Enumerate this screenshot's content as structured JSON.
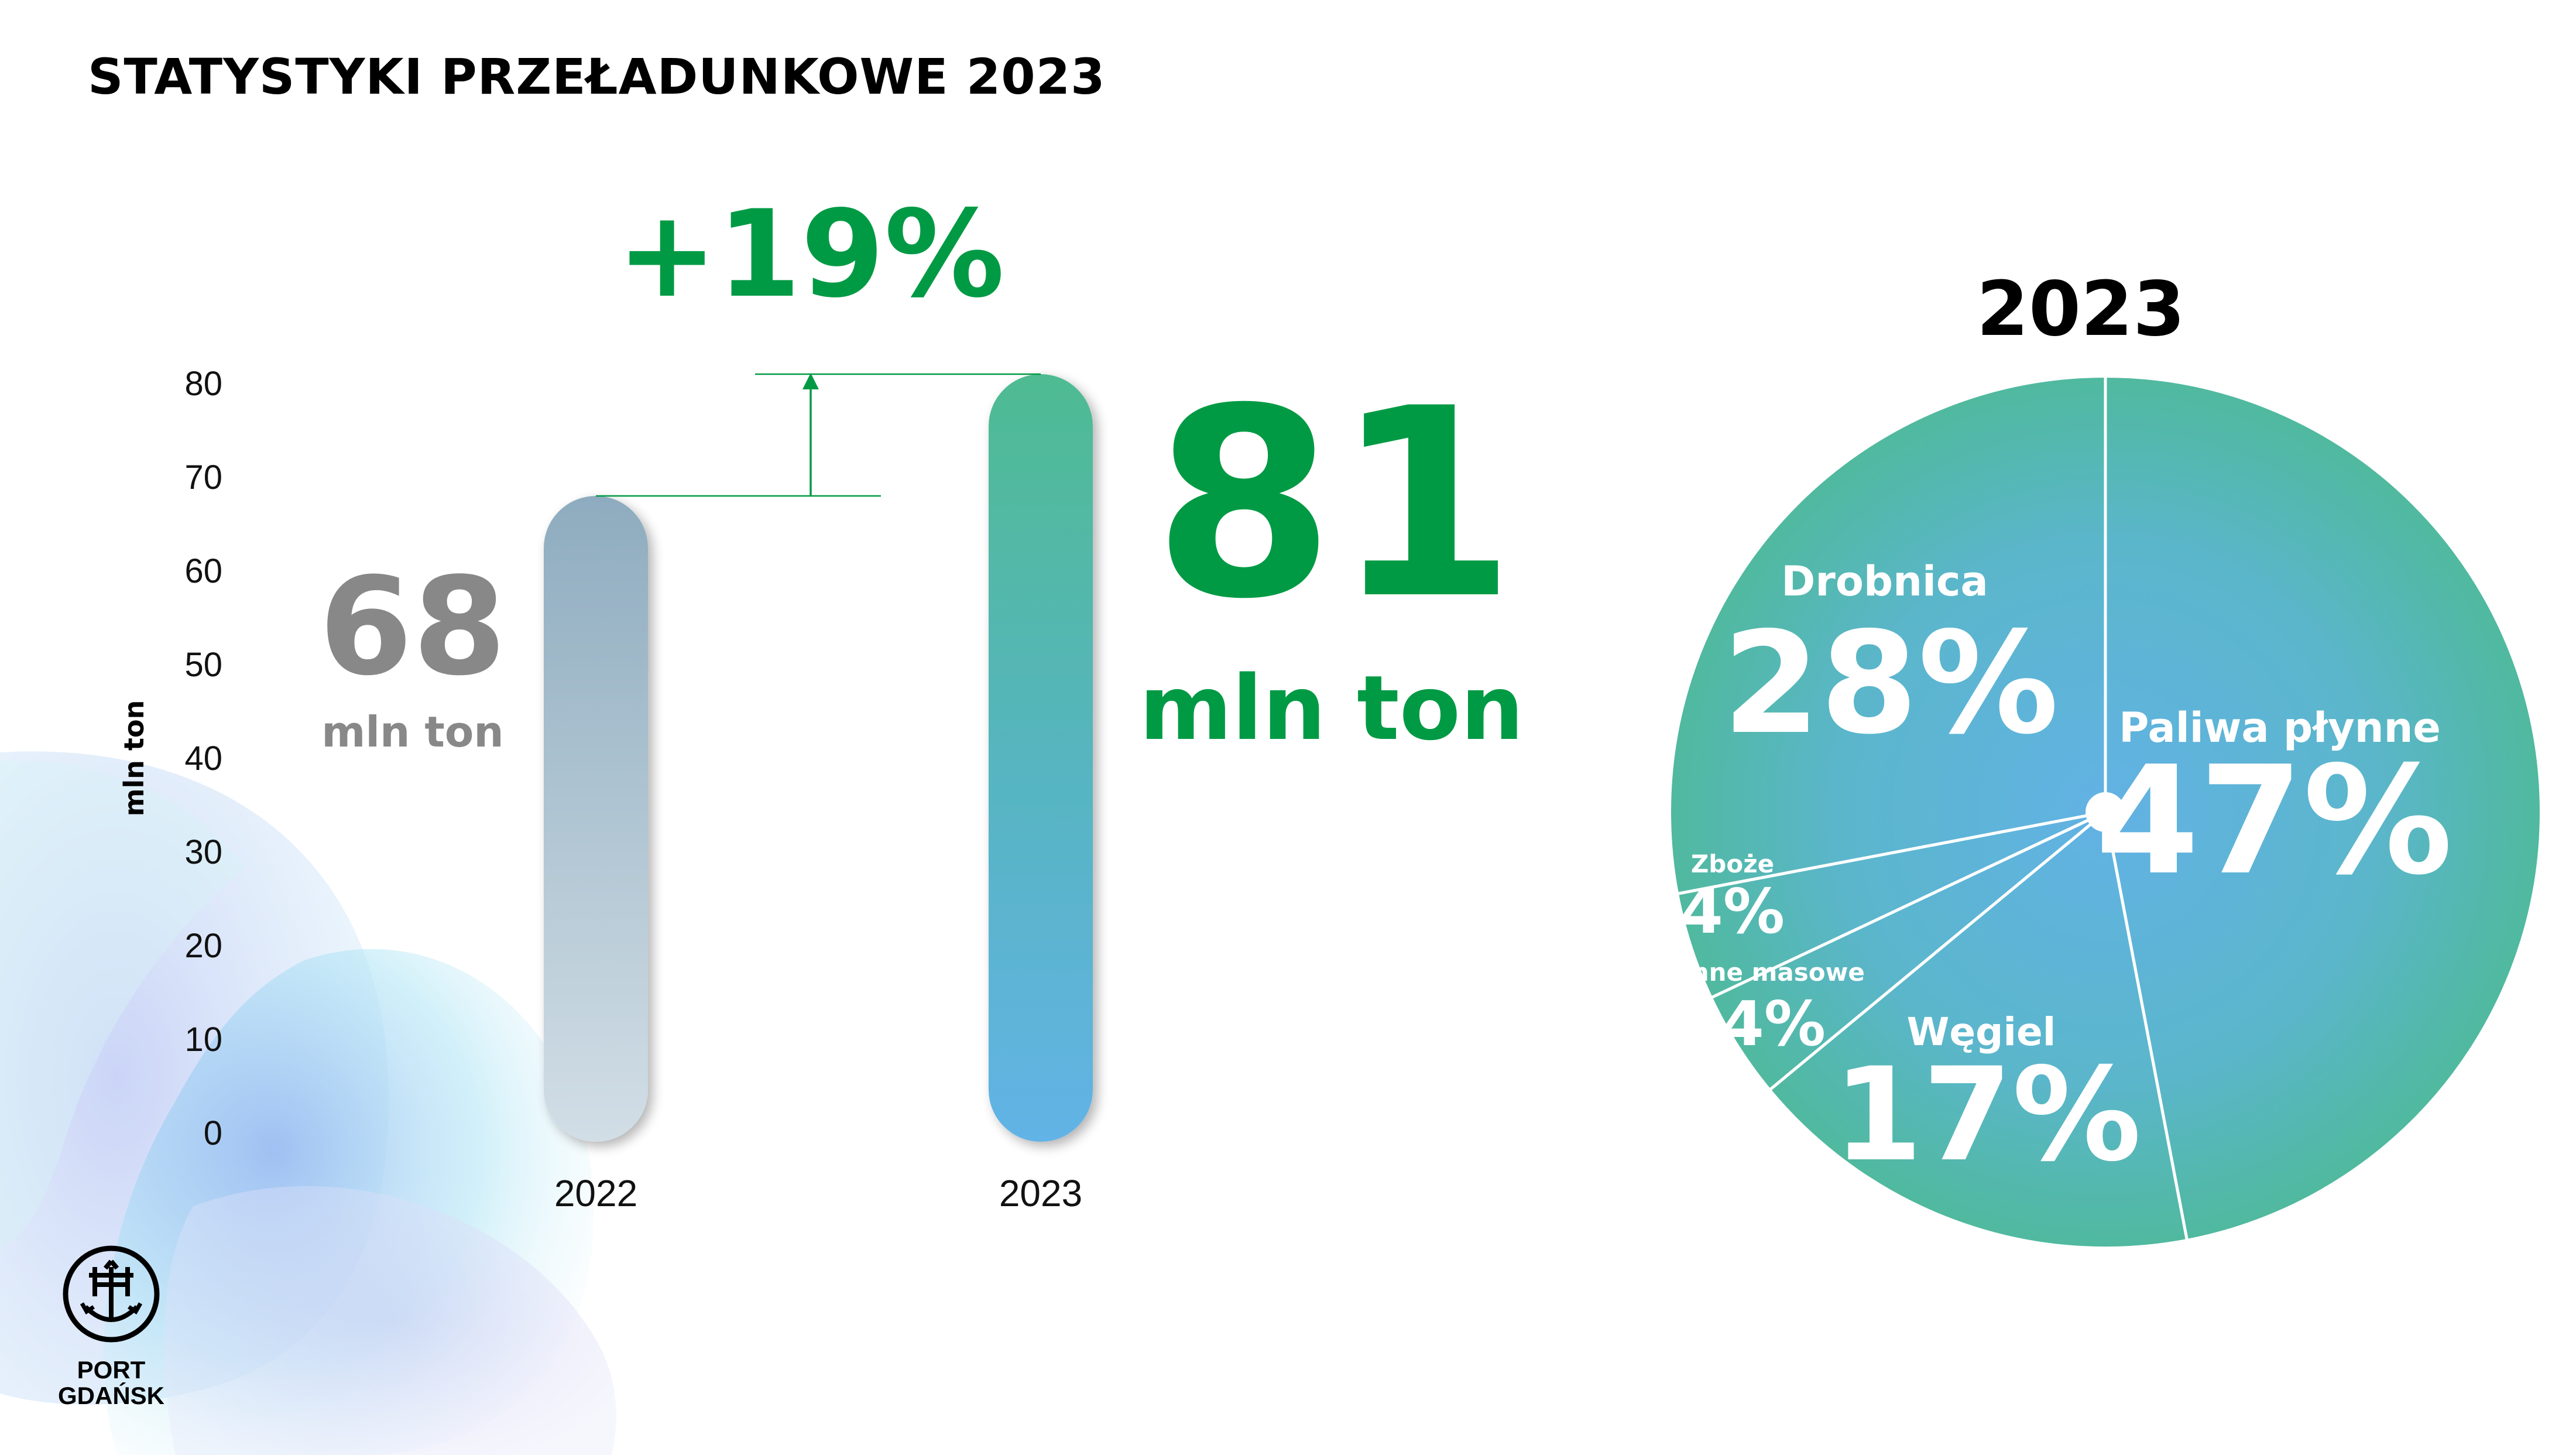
{
  "page": {
    "title": "STATYSTYKI PRZEŁADUNKOWE 2023"
  },
  "logo": {
    "line1": "PORT",
    "line2": "GDAŃSK"
  },
  "colors": {
    "green_text": "#009a44",
    "gray_text": "#888888",
    "teal": "#4fb994",
    "blue": "#62b4e4"
  },
  "chart_data": [
    {
      "type": "bar",
      "categories": [
        "2022",
        "2023"
      ],
      "values": [
        68,
        81
      ],
      "ylabel": "mln ton",
      "ylim": [
        0,
        80
      ],
      "yticks": [
        0,
        10,
        20,
        30,
        40,
        50,
        60,
        70,
        80
      ],
      "grid": false,
      "bar_labels": [
        {
          "value": "68",
          "unit": "mln ton"
        },
        {
          "value": "81",
          "unit": "mln ton"
        }
      ],
      "change_label": "+19%"
    },
    {
      "type": "pie",
      "title": "2023",
      "slices": [
        {
          "label": "Paliwa płynne",
          "percent_label": "47%",
          "value": 47
        },
        {
          "label": "Węgiel",
          "percent_label": "17%",
          "value": 17
        },
        {
          "label": "Inne masowe",
          "percent_label": "4%",
          "value": 4
        },
        {
          "label": "Zboże",
          "percent_label": "4%",
          "value": 4
        },
        {
          "label": "Drobnica",
          "percent_label": "28%",
          "value": 28
        }
      ]
    }
  ]
}
